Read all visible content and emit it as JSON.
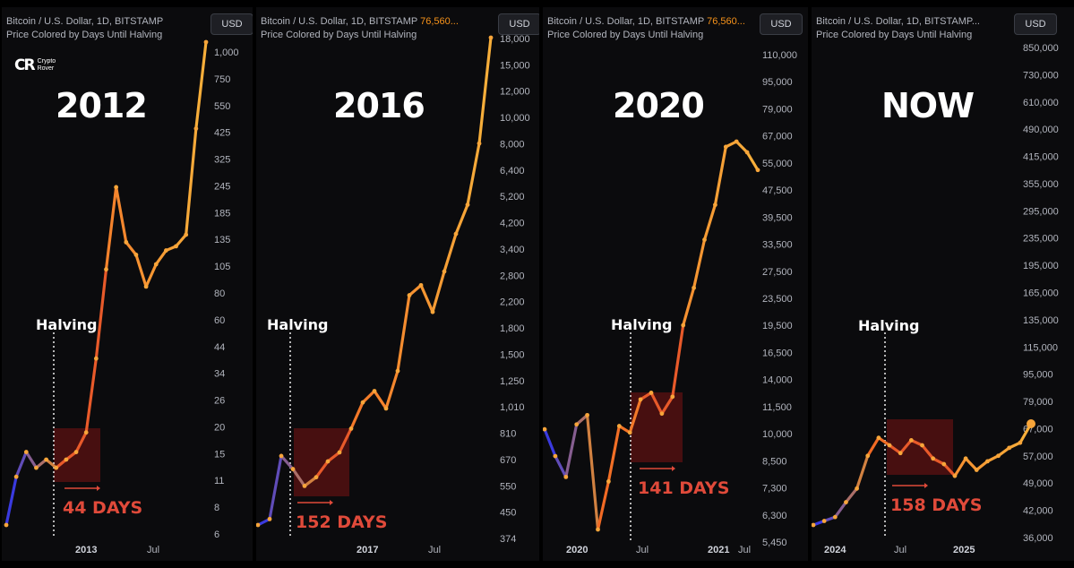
{
  "logo": {
    "mark": "CR",
    "line1": "Crypto",
    "line2": "Rover"
  },
  "chart_data": [
    {
      "type": "line",
      "header": "Bitcoin / U.S. Dollar, 1D, BITSTAMP",
      "header_price": "",
      "subtitle": "Price Colored by Days Until Halving",
      "currency": "USD",
      "title": "2012",
      "halving_label": "Halving",
      "days_label": "44 DAYS",
      "y_scale": "log",
      "y_ticks": [
        "1,000",
        "750",
        "550",
        "425",
        "325",
        "245",
        "185",
        "135",
        "105",
        "80",
        "60",
        "44",
        "34",
        "26",
        "20",
        "15",
        "11",
        "8",
        "6"
      ],
      "x_ticks": [
        {
          "label": "2013",
          "bold": true
        },
        {
          "label": "Jul",
          "bold": false
        }
      ],
      "x": [
        0,
        0.05,
        0.1,
        0.15,
        0.2,
        0.25,
        0.3,
        0.35,
        0.4,
        0.45,
        0.5,
        0.55,
        0.6,
        0.65,
        0.7,
        0.75,
        0.8,
        0.85,
        0.9,
        0.95,
        1
      ],
      "values": [
        6,
        10,
        13,
        11,
        12,
        11,
        12,
        13,
        16,
        35,
        90,
        215,
        120,
        105,
        75,
        95,
        110,
        115,
        130,
        400,
        1000
      ]
    },
    {
      "type": "line",
      "header": "Bitcoin / U.S. Dollar, 1D, BITSTAMP",
      "header_price": "76,560...",
      "subtitle": "Price Colored by Days Until Halving",
      "currency": "USD",
      "title": "2016",
      "halving_label": "Halving",
      "days_label": "152 DAYS",
      "y_scale": "log",
      "y_ticks": [
        "18,000",
        "15,000",
        "12,000",
        "10,000",
        "8,000",
        "6,400",
        "5,200",
        "4,200",
        "3,400",
        "2,800",
        "2,200",
        "1,800",
        "1,500",
        "1,250",
        "1,010",
        "810",
        "670",
        "550",
        "450",
        "374"
      ],
      "x_ticks": [
        {
          "label": "2017",
          "bold": true
        },
        {
          "label": "Jul",
          "bold": false
        }
      ],
      "x": [
        0,
        0.05,
        0.1,
        0.15,
        0.2,
        0.25,
        0.3,
        0.35,
        0.4,
        0.45,
        0.5,
        0.55,
        0.6,
        0.65,
        0.7,
        0.75,
        0.8,
        0.85,
        0.9,
        0.95,
        1
      ],
      "values": [
        430,
        450,
        730,
        660,
        580,
        620,
        700,
        750,
        900,
        1100,
        1200,
        1050,
        1400,
        2500,
        2700,
        2200,
        3000,
        4000,
        5000,
        8000,
        18000
      ]
    },
    {
      "type": "line",
      "header": "Bitcoin / U.S. Dollar, 1D, BITSTAMP",
      "header_price": "76,560...",
      "subtitle": "Price Colored by Days Until Halving",
      "currency": "USD",
      "title": "2020",
      "halving_label": "Halving",
      "days_label": "141 DAYS",
      "y_scale": "log",
      "y_ticks": [
        "110,000",
        "95,000",
        "79,000",
        "67,000",
        "55,000",
        "47,500",
        "39,500",
        "33,500",
        "27,500",
        "23,500",
        "19,500",
        "16,500",
        "14,000",
        "11,500",
        "10,000",
        "8,500",
        "7,300",
        "6,300",
        "5,450"
      ],
      "x_ticks": [
        {
          "label": "2020",
          "bold": true
        },
        {
          "label": "Jul",
          "bold": false
        },
        {
          "label": "2021",
          "bold": true
        },
        {
          "label": "Jul",
          "bold": false
        }
      ],
      "x": [
        0,
        0.05,
        0.1,
        0.15,
        0.2,
        0.25,
        0.3,
        0.35,
        0.4,
        0.45,
        0.5,
        0.55,
        0.6,
        0.65,
        0.7,
        0.75,
        0.8,
        0.85,
        0.9,
        0.95,
        1
      ],
      "values": [
        9500,
        8000,
        7000,
        9800,
        10400,
        5000,
        6800,
        9700,
        9300,
        11500,
        12000,
        10500,
        11700,
        18500,
        23500,
        32000,
        40000,
        58000,
        60000,
        56000,
        50000
      ]
    },
    {
      "type": "line",
      "header": "Bitcoin / U.S. Dollar, 1D, BITSTAMP...",
      "header_price": "",
      "subtitle": "Price Colored by Days Until Halving",
      "currency": "USD",
      "title": "NOW",
      "halving_label": "Halving",
      "days_label": "158 DAYS",
      "y_scale": "log",
      "y_ticks": [
        "850,000",
        "730,000",
        "610,000",
        "490,000",
        "415,000",
        "355,000",
        "295,000",
        "235,000",
        "195,000",
        "165,000",
        "135,000",
        "115,000",
        "95,000",
        "79,000",
        "67,000",
        "57,000",
        "49,000",
        "42,000",
        "36,000"
      ],
      "x_ticks": [
        {
          "label": "2024",
          "bold": true
        },
        {
          "label": "Jul",
          "bold": false
        },
        {
          "label": "2025",
          "bold": true
        }
      ],
      "x": [
        0,
        0.05,
        0.1,
        0.15,
        0.2,
        0.25,
        0.3,
        0.35,
        0.4,
        0.45,
        0.5,
        0.55,
        0.6,
        0.65,
        0.7,
        0.75,
        0.8,
        0.85,
        0.9,
        0.95,
        1
      ],
      "values": [
        42000,
        43000,
        44000,
        48000,
        52000,
        63000,
        70000,
        67000,
        64000,
        69000,
        67000,
        62000,
        60000,
        56000,
        62000,
        58000,
        61000,
        63000,
        66000,
        68000,
        76000
      ]
    }
  ]
}
